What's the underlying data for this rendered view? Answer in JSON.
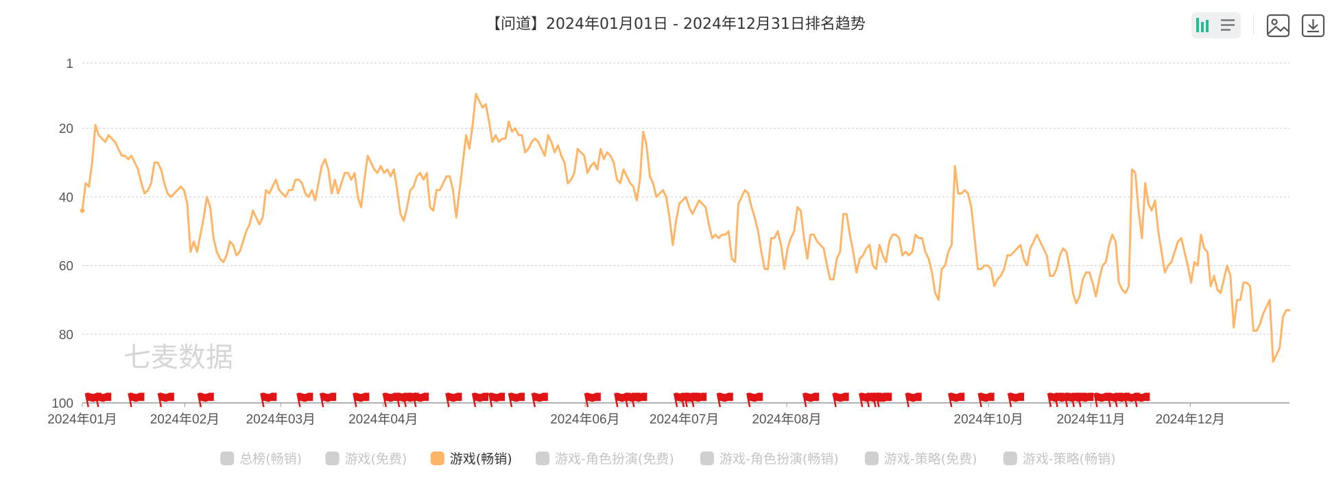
{
  "toolbar": {
    "icons": [
      "bar-chart-icon",
      "list-icon",
      "image-icon",
      "download-icon"
    ],
    "active_color": "#1fbf8f"
  },
  "watermark": "七麦数据",
  "flag_color": "#e01414",
  "line_color": "#ffb466",
  "chart_data": {
    "type": "line",
    "title": "【问道】2024年01月01日 - 2024年12月31日排名趋势",
    "xlabel": "",
    "ylabel": "",
    "y_inverted": true,
    "ylim": [
      1,
      100
    ],
    "y_ticks": [
      1,
      20,
      40,
      60,
      80,
      100
    ],
    "x_ticks": [
      "2024年01月",
      "2024年02月",
      "2024年03月",
      "2024年04月",
      "2024年06月",
      "2024年07月",
      "2024年08月",
      "2024年10月",
      "2024年11月",
      "2024年12月"
    ],
    "grid": true,
    "legend_position": "bottom",
    "legend": [
      {
        "name": "总榜(畅销)",
        "active": false
      },
      {
        "name": "游戏(免费)",
        "active": false
      },
      {
        "name": "游戏(畅销)",
        "active": true
      },
      {
        "name": "游戏-角色扮演(免费)",
        "active": false
      },
      {
        "name": "游戏-角色扮演(畅销)",
        "active": false
      },
      {
        "name": "游戏-策略(免费)",
        "active": false
      },
      {
        "name": "游戏-策略(畅销)",
        "active": false
      }
    ],
    "series": [
      {
        "name": "游戏(畅销)",
        "x_start": "2024-01-01",
        "x_end": "2024-12-31",
        "values": [
          44,
          36,
          37,
          30,
          19,
          22,
          23,
          24,
          22,
          23,
          24,
          26,
          28,
          28,
          29,
          28,
          30,
          32,
          36,
          39,
          38,
          36,
          30,
          30,
          32,
          36,
          39,
          40,
          39,
          38,
          37,
          38,
          42,
          56,
          53,
          56,
          51,
          46,
          40,
          43,
          52,
          56,
          58,
          59,
          57,
          53,
          54,
          57,
          56,
          53,
          50,
          48,
          44,
          46,
          48,
          46,
          38,
          39,
          37,
          35,
          38,
          39,
          40,
          38,
          38,
          35,
          35,
          36,
          39,
          40,
          38,
          41,
          36,
          31,
          29,
          32,
          39,
          35,
          39,
          36,
          33,
          33,
          35,
          33,
          40,
          43,
          35,
          28,
          30,
          32,
          33,
          31,
          33,
          32,
          34,
          32,
          38,
          45,
          47,
          43,
          38,
          37,
          34,
          33,
          35,
          33,
          43,
          44,
          38,
          38,
          36,
          34,
          34,
          38,
          46,
          38,
          30,
          22,
          26,
          19,
          10,
          12,
          14,
          13,
          18,
          24,
          22,
          24,
          23,
          23,
          18,
          21,
          20,
          22,
          22,
          27,
          26,
          24,
          23,
          24,
          26,
          28,
          22,
          24,
          27,
          25,
          28,
          30,
          36,
          35,
          33,
          26,
          27,
          28,
          33,
          31,
          30,
          32,
          26,
          29,
          27,
          28,
          30,
          35,
          36,
          32,
          34,
          36,
          37,
          41,
          35,
          21,
          25,
          34,
          36,
          40,
          39,
          38,
          40,
          46,
          54,
          47,
          42,
          41,
          40,
          43,
          45,
          43,
          41,
          42,
          43,
          48,
          52,
          51,
          52,
          51,
          51,
          50,
          58,
          59,
          42,
          40,
          38,
          39,
          43,
          46,
          50,
          56,
          61,
          61,
          52,
          52,
          50,
          54,
          61,
          55,
          52,
          50,
          43,
          44,
          52,
          58,
          51,
          51,
          53,
          54,
          55,
          60,
          64,
          64,
          58,
          56,
          45,
          45,
          51,
          56,
          62,
          58,
          57,
          55,
          54,
          60,
          61,
          54,
          57,
          59,
          53,
          51,
          51,
          52,
          57,
          56,
          57,
          56,
          51,
          52,
          52,
          56,
          58,
          62,
          68,
          70,
          61,
          60,
          56,
          54,
          31,
          39,
          39,
          38,
          39,
          43,
          52,
          61,
          61,
          60,
          60,
          61,
          66,
          64,
          63,
          61,
          57,
          57,
          56,
          55,
          54,
          58,
          60,
          55,
          53,
          51,
          53,
          55,
          57,
          63,
          63,
          61,
          57,
          55,
          56,
          61,
          68,
          71,
          69,
          64,
          62,
          62,
          65,
          69,
          64,
          60,
          59,
          54,
          51,
          53,
          65,
          67,
          68,
          66,
          32,
          33,
          44,
          52,
          36,
          42,
          44,
          41,
          50,
          56,
          62,
          60,
          59,
          56,
          53,
          52,
          56,
          60,
          65,
          59,
          60,
          51,
          55,
          56,
          66,
          63,
          67,
          68,
          64,
          60,
          63,
          78,
          70,
          70,
          65,
          65,
          66,
          79,
          79,
          77,
          74,
          72,
          70,
          88,
          86,
          84,
          75,
          73,
          73
        ]
      }
    ],
    "event_flags_x": [
      "2024-01-02",
      "2024-01-05",
      "2024-01-15",
      "2024-01-24",
      "2024-02-05",
      "2024-02-24",
      "2024-03-06",
      "2024-03-13",
      "2024-03-23",
      "2024-04-01",
      "2024-04-05",
      "2024-04-07",
      "2024-04-10",
      "2024-04-20",
      "2024-04-28",
      "2024-05-03",
      "2024-05-09",
      "2024-05-16",
      "2024-06-01",
      "2024-06-10",
      "2024-06-13",
      "2024-06-15",
      "2024-06-28",
      "2024-06-30",
      "2024-07-01",
      "2024-07-03",
      "2024-07-11",
      "2024-07-20",
      "2024-08-06",
      "2024-08-15",
      "2024-08-23",
      "2024-08-25",
      "2024-08-27",
      "2024-08-28",
      "2024-09-06",
      "2024-09-19",
      "2024-09-28",
      "2024-10-07",
      "2024-10-19",
      "2024-10-21",
      "2024-10-24",
      "2024-10-26",
      "2024-10-28",
      "2024-11-02",
      "2024-11-06",
      "2024-11-08",
      "2024-11-11",
      "2024-11-14"
    ]
  }
}
